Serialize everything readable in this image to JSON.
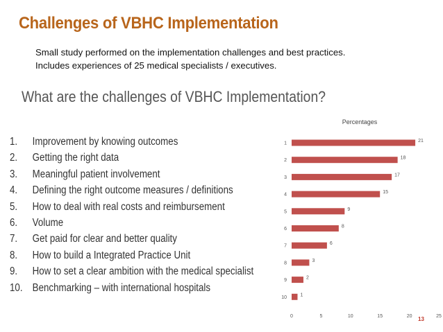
{
  "slide": {
    "title": "Challenges of VBHC Implementation",
    "subtitle_line1": "Small study performed on the implementation challenges and best practices.",
    "subtitle_line2": "Includes experiences of 25 medical specialists / executives.",
    "question": "What are the challenges of VBHC Implementation?",
    "page_number": "13"
  },
  "challenges": [
    {
      "num": "1.",
      "text": "Improvement by knowing outcomes"
    },
    {
      "num": "2.",
      "text": "Getting the right data"
    },
    {
      "num": "3.",
      "text": "Meaningful patient involvement"
    },
    {
      "num": "4.",
      "text": "Defining the right outcome measures / definitions"
    },
    {
      "num": "5.",
      "text": "How to deal with real costs and reimbursement"
    },
    {
      "num": "6.",
      "text": "Volume"
    },
    {
      "num": "7.",
      "text": "Get paid for clear and better quality"
    },
    {
      "num": "8.",
      "text": "How to build a Integrated Practice Unit"
    },
    {
      "num": "9.",
      "text": "How to set a clear ambition with the medical specialist"
    },
    {
      "num": "10.",
      "text": "Benchmarking – with international hospitals"
    }
  ],
  "chart_data": {
    "type": "bar",
    "orientation": "horizontal",
    "title": "Percentages",
    "categories": [
      "1",
      "2",
      "3",
      "4",
      "5",
      "6",
      "7",
      "8",
      "9",
      "10"
    ],
    "values": [
      21,
      18,
      17,
      15,
      9,
      8,
      6,
      3,
      2,
      1
    ],
    "xlim": [
      0,
      25
    ],
    "xticks": [
      "0",
      "5",
      "10",
      "15",
      "20",
      "25"
    ],
    "grid": false,
    "bar_color": "#c0504d"
  }
}
